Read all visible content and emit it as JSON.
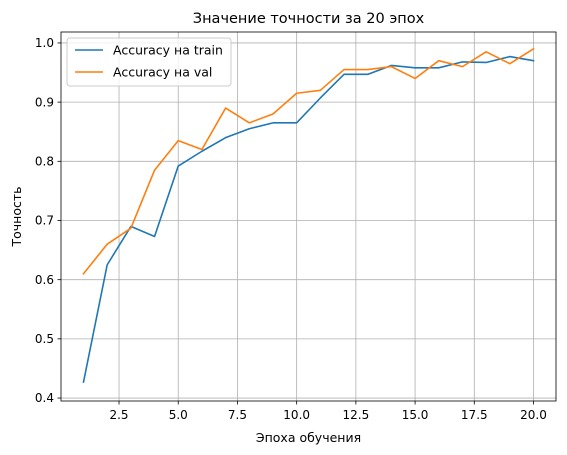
{
  "chart_data": {
    "type": "line",
    "title": "Значение точности за 20 эпох",
    "xlabel": "Эпоха обучения",
    "ylabel": "Точность",
    "x": [
      1,
      2,
      3,
      4,
      5,
      6,
      7,
      8,
      9,
      10,
      11,
      12,
      13,
      14,
      15,
      16,
      17,
      18,
      19,
      20
    ],
    "xlim": [
      0.05,
      20.95
    ],
    "ylim": [
      0.395,
      1.0185
    ],
    "xticks": [
      2.5,
      5.0,
      7.5,
      10.0,
      12.5,
      15.0,
      17.5,
      20.0
    ],
    "xtick_labels": [
      "2.5",
      "5.0",
      "7.5",
      "10.0",
      "12.5",
      "15.0",
      "17.5",
      "20.0"
    ],
    "yticks": [
      0.4,
      0.5,
      0.6,
      0.7,
      0.8,
      0.9,
      1.0
    ],
    "ytick_labels": [
      "0.4",
      "0.5",
      "0.6",
      "0.7",
      "0.8",
      "0.9",
      "1.0"
    ],
    "grid": true,
    "legend_position": "upper-left",
    "series": [
      {
        "name": "Accuracy на train",
        "color": "#1f77b4",
        "values": [
          0.427,
          0.625,
          0.69,
          0.673,
          0.792,
          0.817,
          0.84,
          0.855,
          0.865,
          0.865,
          0.907,
          0.947,
          0.947,
          0.962,
          0.958,
          0.958,
          0.968,
          0.967,
          0.977,
          0.97
        ]
      },
      {
        "name": "Accuracy на val",
        "color": "#ff7f0e",
        "values": [
          0.61,
          0.66,
          0.687,
          0.785,
          0.835,
          0.82,
          0.89,
          0.865,
          0.88,
          0.915,
          0.92,
          0.955,
          0.955,
          0.96,
          0.94,
          0.97,
          0.96,
          0.985,
          0.965,
          0.99
        ]
      }
    ]
  }
}
